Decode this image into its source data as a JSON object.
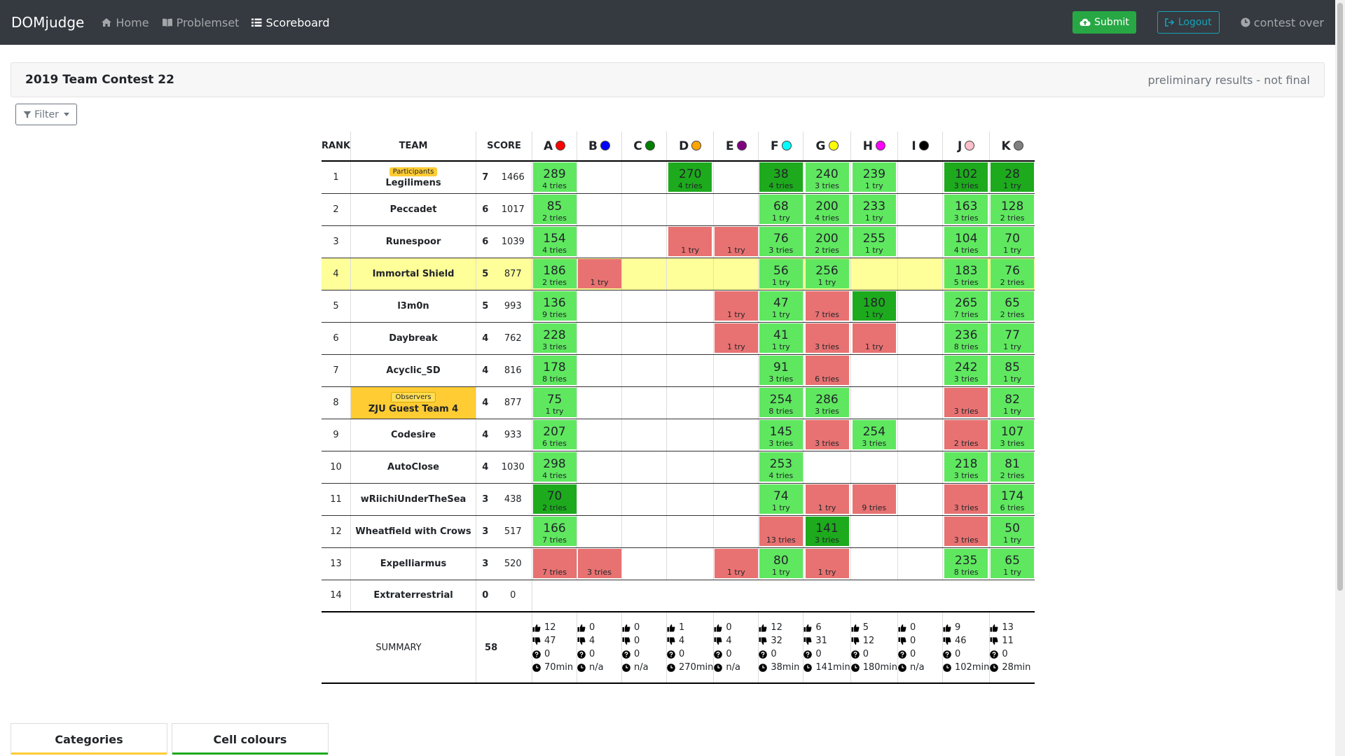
{
  "nav": {
    "brand": "DOMjudge",
    "home": "Home",
    "problemset": "Problemset",
    "scoreboard": "Scoreboard",
    "submit": "Submit",
    "logout": "Logout",
    "contest_state": "contest over"
  },
  "contest": {
    "title": "2019 Team Contest 22",
    "status": "preliminary results - not final"
  },
  "filter_label": "Filter",
  "headers": {
    "rank": "RANK",
    "team": "TEAM",
    "score": "SCORE"
  },
  "problems": [
    {
      "label": "A",
      "color": "#ff0000"
    },
    {
      "label": "B",
      "color": "#0000ff"
    },
    {
      "label": "C",
      "color": "#008000"
    },
    {
      "label": "D",
      "color": "#ffa500"
    },
    {
      "label": "E",
      "color": "#800080"
    },
    {
      "label": "F",
      "color": "#00ffff"
    },
    {
      "label": "G",
      "color": "#ffff00"
    },
    {
      "label": "H",
      "color": "#ff00ff"
    },
    {
      "label": "I",
      "color": "#000000"
    },
    {
      "label": "J",
      "color": "#ffc0cb"
    },
    {
      "label": "K",
      "color": "#808080"
    }
  ],
  "teams": [
    {
      "rank": "1",
      "name": "Legilimens",
      "category": "Participants",
      "solved": "7",
      "points": "1466",
      "cells": [
        [
          "s",
          "289",
          "4 tries"
        ],
        [
          "",
          "",
          ""
        ],
        [
          "",
          "",
          ""
        ],
        [
          "f1",
          "270",
          "4 tries"
        ],
        [
          "",
          "",
          ""
        ],
        [
          "f1",
          "38",
          "4 tries"
        ],
        [
          "s",
          "240",
          "3 tries"
        ],
        [
          "s",
          "239",
          "1 try"
        ],
        [
          "",
          "",
          ""
        ],
        [
          "f1",
          "102",
          "3 tries"
        ],
        [
          "f1",
          "28",
          "1 try"
        ]
      ]
    },
    {
      "rank": "2",
      "name": "Peccadet",
      "solved": "6",
      "points": "1017",
      "cells": [
        [
          "s",
          "85",
          "2 tries"
        ],
        [
          "",
          "",
          ""
        ],
        [
          "",
          "",
          ""
        ],
        [
          "",
          "",
          ""
        ],
        [
          "",
          "",
          ""
        ],
        [
          "s",
          "68",
          "1 try"
        ],
        [
          "s",
          "200",
          "4 tries"
        ],
        [
          "s",
          "233",
          "1 try"
        ],
        [
          "",
          "",
          ""
        ],
        [
          "s",
          "163",
          "3 tries"
        ],
        [
          "s",
          "128",
          "2 tries"
        ]
      ]
    },
    {
      "rank": "3",
      "name": "Runespoor",
      "solved": "6",
      "points": "1039",
      "cells": [
        [
          "s",
          "154",
          "4 tries"
        ],
        [
          "",
          "",
          ""
        ],
        [
          "",
          "",
          ""
        ],
        [
          "x",
          "",
          "1 try"
        ],
        [
          "x",
          "",
          "1 try"
        ],
        [
          "s",
          "76",
          "3 tries"
        ],
        [
          "s",
          "200",
          "2 tries"
        ],
        [
          "s",
          "255",
          "1 try"
        ],
        [
          "",
          "",
          ""
        ],
        [
          "s",
          "104",
          "4 tries"
        ],
        [
          "s",
          "70",
          "1 try"
        ]
      ]
    },
    {
      "rank": "4",
      "name": "Immortal Shield",
      "solved": "5",
      "points": "877",
      "highlight": true,
      "cells": [
        [
          "s",
          "186",
          "2 tries"
        ],
        [
          "x",
          "",
          "1 try"
        ],
        [
          "",
          "",
          ""
        ],
        [
          "",
          "",
          ""
        ],
        [
          "",
          "",
          ""
        ],
        [
          "s",
          "56",
          "1 try"
        ],
        [
          "s",
          "256",
          "1 try"
        ],
        [
          "",
          "",
          ""
        ],
        [
          "",
          "",
          ""
        ],
        [
          "s",
          "183",
          "5 tries"
        ],
        [
          "s",
          "76",
          "2 tries"
        ]
      ]
    },
    {
      "rank": "5",
      "name": "l3m0n",
      "solved": "5",
      "points": "993",
      "cells": [
        [
          "s",
          "136",
          "9 tries"
        ],
        [
          "",
          "",
          ""
        ],
        [
          "",
          "",
          ""
        ],
        [
          "",
          "",
          ""
        ],
        [
          "x",
          "",
          "1 try"
        ],
        [
          "s",
          "47",
          "1 try"
        ],
        [
          "x",
          "",
          "7 tries"
        ],
        [
          "f1",
          "180",
          "1 try"
        ],
        [
          "",
          "",
          ""
        ],
        [
          "s",
          "265",
          "7 tries"
        ],
        [
          "s",
          "65",
          "2 tries"
        ]
      ]
    },
    {
      "rank": "6",
      "name": "Daybreak",
      "solved": "4",
      "points": "762",
      "cells": [
        [
          "s",
          "228",
          "3 tries"
        ],
        [
          "",
          "",
          ""
        ],
        [
          "",
          "",
          ""
        ],
        [
          "",
          "",
          ""
        ],
        [
          "x",
          "",
          "1 try"
        ],
        [
          "s",
          "41",
          "1 try"
        ],
        [
          "x",
          "",
          "3 tries"
        ],
        [
          "x",
          "",
          "1 try"
        ],
        [
          "",
          "",
          ""
        ],
        [
          "s",
          "236",
          "8 tries"
        ],
        [
          "s",
          "77",
          "1 try"
        ]
      ]
    },
    {
      "rank": "7",
      "name": "Acyclic_SD",
      "solved": "4",
      "points": "816",
      "cells": [
        [
          "s",
          "178",
          "8 tries"
        ],
        [
          "",
          "",
          ""
        ],
        [
          "",
          "",
          ""
        ],
        [
          "",
          "",
          ""
        ],
        [
          "",
          "",
          ""
        ],
        [
          "s",
          "91",
          "3 tries"
        ],
        [
          "x",
          "",
          "6 tries"
        ],
        [
          "",
          "",
          ""
        ],
        [
          "",
          "",
          ""
        ],
        [
          "s",
          "242",
          "3 tries"
        ],
        [
          "s",
          "85",
          "1 try"
        ]
      ]
    },
    {
      "rank": "8",
      "name": "ZJU Guest Team 4",
      "category": "Observers",
      "observer": true,
      "solved": "4",
      "points": "877",
      "cells": [
        [
          "s",
          "75",
          "1 try"
        ],
        [
          "",
          "",
          ""
        ],
        [
          "",
          "",
          ""
        ],
        [
          "",
          "",
          ""
        ],
        [
          "",
          "",
          ""
        ],
        [
          "s",
          "254",
          "8 tries"
        ],
        [
          "s",
          "286",
          "3 tries"
        ],
        [
          "",
          "",
          ""
        ],
        [
          "",
          "",
          ""
        ],
        [
          "x",
          "",
          "3 tries"
        ],
        [
          "s",
          "82",
          "1 try"
        ]
      ]
    },
    {
      "rank": "9",
      "name": "Codesire",
      "solved": "4",
      "points": "933",
      "cells": [
        [
          "s",
          "207",
          "6 tries"
        ],
        [
          "",
          "",
          ""
        ],
        [
          "",
          "",
          ""
        ],
        [
          "",
          "",
          ""
        ],
        [
          "",
          "",
          ""
        ],
        [
          "s",
          "145",
          "3 tries"
        ],
        [
          "x",
          "",
          "3 tries"
        ],
        [
          "s",
          "254",
          "3 tries"
        ],
        [
          "",
          "",
          ""
        ],
        [
          "x",
          "",
          "2 tries"
        ],
        [
          "s",
          "107",
          "3 tries"
        ]
      ]
    },
    {
      "rank": "10",
      "name": "AutoClose",
      "solved": "4",
      "points": "1030",
      "cells": [
        [
          "s",
          "298",
          "4 tries"
        ],
        [
          "",
          "",
          ""
        ],
        [
          "",
          "",
          ""
        ],
        [
          "",
          "",
          ""
        ],
        [
          "",
          "",
          ""
        ],
        [
          "s",
          "253",
          "4 tries"
        ],
        [
          "",
          "",
          ""
        ],
        [
          "",
          "",
          ""
        ],
        [
          "",
          "",
          ""
        ],
        [
          "s",
          "218",
          "3 tries"
        ],
        [
          "s",
          "81",
          "2 tries"
        ]
      ]
    },
    {
      "rank": "11",
      "name": "wRiichiUnderTheSea",
      "solved": "3",
      "points": "438",
      "cells": [
        [
          "f1",
          "70",
          "2 tries"
        ],
        [
          "",
          "",
          ""
        ],
        [
          "",
          "",
          ""
        ],
        [
          "",
          "",
          ""
        ],
        [
          "",
          "",
          ""
        ],
        [
          "s",
          "74",
          "1 try"
        ],
        [
          "x",
          "",
          "1 try"
        ],
        [
          "x",
          "",
          "9 tries"
        ],
        [
          "",
          "",
          ""
        ],
        [
          "x",
          "",
          "3 tries"
        ],
        [
          "s",
          "174",
          "6 tries"
        ]
      ]
    },
    {
      "rank": "12",
      "name": "Wheatfield with Crows",
      "solved": "3",
      "points": "517",
      "cells": [
        [
          "s",
          "166",
          "7 tries"
        ],
        [
          "",
          "",
          ""
        ],
        [
          "",
          "",
          ""
        ],
        [
          "",
          "",
          ""
        ],
        [
          "",
          "",
          ""
        ],
        [
          "x",
          "",
          "13 tries"
        ],
        [
          "f1",
          "141",
          "3 tries"
        ],
        [
          "",
          "",
          ""
        ],
        [
          "",
          "",
          ""
        ],
        [
          "x",
          "",
          "3 tries"
        ],
        [
          "s",
          "50",
          "1 try"
        ]
      ]
    },
    {
      "rank": "13",
      "name": "Expelliarmus",
      "solved": "3",
      "points": "520",
      "cells": [
        [
          "x",
          "",
          "7 tries"
        ],
        [
          "x",
          "",
          "3 tries"
        ],
        [
          "",
          "",
          ""
        ],
        [
          "",
          "",
          ""
        ],
        [
          "x",
          "",
          "1 try"
        ],
        [
          "s",
          "80",
          "1 try"
        ],
        [
          "x",
          "",
          "1 try"
        ],
        [
          "",
          "",
          ""
        ],
        [
          "",
          "",
          ""
        ],
        [
          "s",
          "235",
          "8 tries"
        ],
        [
          "s",
          "65",
          "1 try"
        ]
      ]
    },
    {
      "rank": "14",
      "name": "Extraterrestrial",
      "solved": "0",
      "points": "0",
      "empty_row": true,
      "cells": []
    }
  ],
  "summary": {
    "label": "SUMMARY",
    "total": "58",
    "cols": [
      {
        "ok": "12",
        "fail": "47",
        "pending": "0",
        "first": "70min"
      },
      {
        "ok": "0",
        "fail": "4",
        "pending": "0",
        "first": "n/a"
      },
      {
        "ok": "0",
        "fail": "0",
        "pending": "0",
        "first": "n/a"
      },
      {
        "ok": "1",
        "fail": "4",
        "pending": "0",
        "first": "270min"
      },
      {
        "ok": "0",
        "fail": "4",
        "pending": "0",
        "first": "n/a"
      },
      {
        "ok": "12",
        "fail": "32",
        "pending": "0",
        "first": "38min"
      },
      {
        "ok": "6",
        "fail": "31",
        "pending": "0",
        "first": "141min"
      },
      {
        "ok": "5",
        "fail": "12",
        "pending": "0",
        "first": "180min"
      },
      {
        "ok": "0",
        "fail": "0",
        "pending": "0",
        "first": "n/a"
      },
      {
        "ok": "9",
        "fail": "46",
        "pending": "0",
        "first": "102min"
      },
      {
        "ok": "13",
        "fail": "11",
        "pending": "0",
        "first": "28min"
      }
    ]
  },
  "bottom_tabs": {
    "categories": "Categories",
    "cell_colours": "Cell colours"
  },
  "colors": {
    "solved": "#60e760",
    "first_solve": "#1daa1d",
    "failed": "#e87272",
    "highlight_row": "#ffff99",
    "category": "#ffcc33"
  },
  "icons": {
    "home": "home-icon",
    "problemset": "book-icon",
    "scoreboard": "list-icon",
    "submit": "cloud-upload-icon",
    "logout": "sign-out-icon",
    "clock": "clock-icon",
    "filter": "filter-icon",
    "ok": "thumbs-up-icon",
    "fail": "thumbs-down-icon",
    "pending": "question-circle-icon",
    "first": "clock-icon"
  }
}
